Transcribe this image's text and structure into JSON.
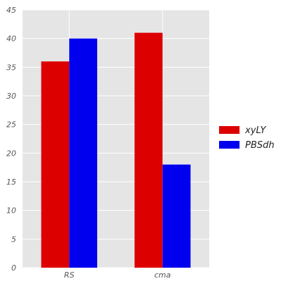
{
  "chart_data": {
    "type": "bar",
    "categories": [
      "RS",
      "cma"
    ],
    "series": [
      {
        "name": "xyLY",
        "values": [
          36,
          41
        ],
        "color": "#dd0000"
      },
      {
        "name": "PBSdh",
        "values": [
          40,
          18
        ],
        "color": "#0000ee"
      }
    ],
    "ylim": [
      0,
      45
    ],
    "yticks": [
      0,
      5,
      10,
      15,
      20,
      25,
      30,
      35,
      40,
      45
    ],
    "grid": true,
    "legend_position": "right",
    "plot_background": "#e5e5e5",
    "grid_color": "#ffffff"
  }
}
